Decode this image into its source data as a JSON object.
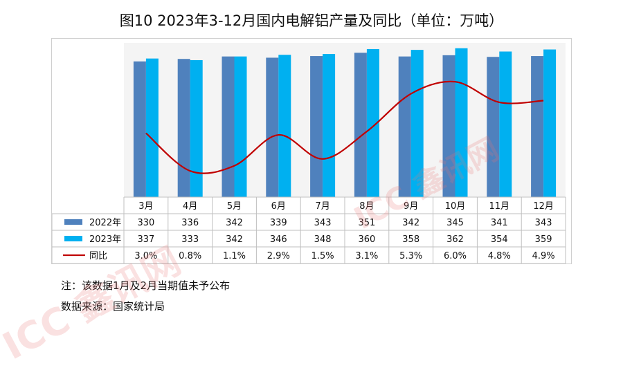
{
  "title": "图10  2023年3-12月国内电解铝产量及同比（单位：万吨）",
  "footnotes": {
    "note": "注：该数据1月及2月当期值未予公布",
    "source": "数据来源：国家统计局"
  },
  "watermarks": [
    "ICC 鑫讯网",
    "ICC 鑫讯网"
  ],
  "colors": {
    "series_2022": "#4f81bd",
    "series_2023": "#00b0f0",
    "yoy_line": "#c00000"
  },
  "chart_data": {
    "type": "bar",
    "categories": [
      "3月",
      "4月",
      "5月",
      "6月",
      "7月",
      "8月",
      "9月",
      "10月",
      "11月",
      "12月"
    ],
    "series": [
      {
        "name": "2022年",
        "type": "bar",
        "values": [
          330,
          336,
          342,
          339,
          343,
          351,
          342,
          345,
          341,
          343
        ]
      },
      {
        "name": "2023年",
        "type": "bar",
        "values": [
          337,
          333,
          342,
          346,
          348,
          360,
          358,
          362,
          354,
          359
        ]
      },
      {
        "name": "同比",
        "type": "line",
        "values": [
          3.0,
          0.8,
          1.1,
          2.9,
          1.5,
          3.1,
          5.3,
          6.0,
          4.8,
          4.9
        ],
        "labels": [
          "3.0%",
          "0.8%",
          "1.1%",
          "2.9%",
          "1.5%",
          "3.1%",
          "5.3%",
          "6.0%",
          "4.8%",
          "4.9%"
        ]
      }
    ],
    "data_table": true,
    "axes_visible": false
  }
}
